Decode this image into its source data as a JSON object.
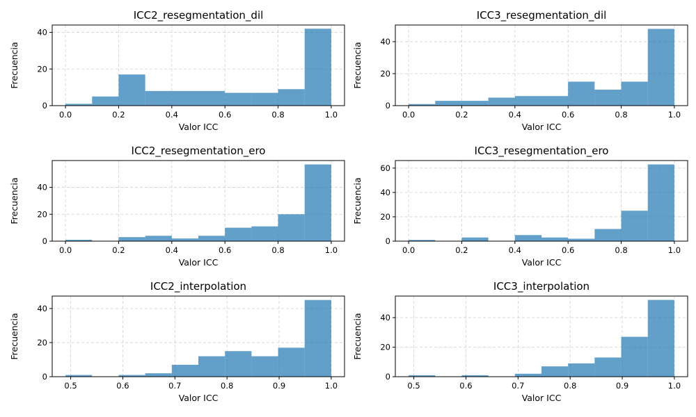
{
  "figure": {
    "background": "#ffffff",
    "bar_color": "#1f77b4",
    "bar_opacity": 0.7,
    "grid_color": "#b0b0b0"
  },
  "chart_data": [
    {
      "type": "bar",
      "title": "ICC2_resegmentation_dil",
      "xlabel": "Valor ICC",
      "ylabel": "Frecuencia",
      "grid": true,
      "xlim": [
        -0.05,
        1.05
      ],
      "ylim": [
        0,
        44
      ],
      "xticks": [
        0.0,
        0.2,
        0.4,
        0.6,
        0.8,
        1.0
      ],
      "xtick_labels": [
        "0.0",
        "0.2",
        "0.4",
        "0.6",
        "0.8",
        "1.0"
      ],
      "yticks": [
        0,
        20,
        40
      ],
      "ytick_labels": [
        "0",
        "20",
        "40"
      ],
      "bin_edges": [
        0.0,
        0.1,
        0.2,
        0.3,
        0.4,
        0.5,
        0.6,
        0.7,
        0.8,
        0.9,
        1.0
      ],
      "values": [
        1,
        5,
        17,
        8,
        8,
        8,
        7,
        7,
        9,
        42
      ]
    },
    {
      "type": "bar",
      "title": "ICC3_resegmentation_dil",
      "xlabel": "Valor ICC",
      "ylabel": "Frecuencia",
      "grid": true,
      "xlim": [
        -0.05,
        1.05
      ],
      "ylim": [
        0,
        50.4
      ],
      "xticks": [
        0.0,
        0.2,
        0.4,
        0.6,
        0.8,
        1.0
      ],
      "xtick_labels": [
        "0.0",
        "0.2",
        "0.4",
        "0.6",
        "0.8",
        "1.0"
      ],
      "yticks": [
        0,
        20,
        40
      ],
      "ytick_labels": [
        "0",
        "20",
        "40"
      ],
      "bin_edges": [
        0.0,
        0.1,
        0.2,
        0.3,
        0.4,
        0.5,
        0.6,
        0.7,
        0.8,
        0.9,
        1.0
      ],
      "values": [
        1,
        3,
        3,
        5,
        6,
        6,
        15,
        10,
        15,
        48
      ]
    },
    {
      "type": "bar",
      "title": "ICC2_resegmentation_ero",
      "xlabel": "Valor ICC",
      "ylabel": "Frecuencia",
      "grid": true,
      "xlim": [
        -0.05,
        1.05
      ],
      "ylim": [
        0,
        59.9
      ],
      "xticks": [
        0.0,
        0.2,
        0.4,
        0.6,
        0.8,
        1.0
      ],
      "xtick_labels": [
        "0.0",
        "0.2",
        "0.4",
        "0.6",
        "0.8",
        "1.0"
      ],
      "yticks": [
        0,
        20,
        40
      ],
      "ytick_labels": [
        "0",
        "20",
        "40"
      ],
      "bin_edges": [
        0.0,
        0.1,
        0.2,
        0.3,
        0.4,
        0.5,
        0.6,
        0.7,
        0.8,
        0.9,
        1.0
      ],
      "values": [
        1,
        0,
        3,
        4,
        2,
        4,
        10,
        11,
        20,
        57
      ]
    },
    {
      "type": "bar",
      "title": "ICC3_resegmentation_ero",
      "xlabel": "Valor ICC",
      "ylabel": "Frecuencia",
      "grid": true,
      "xlim": [
        -0.05,
        1.05
      ],
      "ylim": [
        0,
        66.2
      ],
      "xticks": [
        0.0,
        0.2,
        0.4,
        0.6,
        0.8,
        1.0
      ],
      "xtick_labels": [
        "0.0",
        "0.2",
        "0.4",
        "0.6",
        "0.8",
        "1.0"
      ],
      "yticks": [
        0,
        20,
        40,
        60
      ],
      "ytick_labels": [
        "0",
        "20",
        "40",
        "60"
      ],
      "bin_edges": [
        0.0,
        0.1,
        0.2,
        0.3,
        0.4,
        0.5,
        0.6,
        0.7,
        0.8,
        0.9,
        1.0
      ],
      "values": [
        1,
        0,
        3,
        0,
        5,
        3,
        2,
        10,
        25,
        63
      ]
    },
    {
      "type": "bar",
      "title": "ICC2_interpolation",
      "xlabel": "Valor ICC",
      "ylabel": "Frecuencia",
      "grid": true,
      "xlim": [
        0.4645,
        1.0255
      ],
      "ylim": [
        0,
        47.3
      ],
      "xticks": [
        0.5,
        0.6,
        0.7,
        0.8,
        0.9,
        1.0
      ],
      "xtick_labels": [
        "0.5",
        "0.6",
        "0.7",
        "0.8",
        "0.9",
        "1.0"
      ],
      "yticks": [
        0,
        20,
        40
      ],
      "ytick_labels": [
        "0",
        "20",
        "40"
      ],
      "bin_edges": [
        0.49,
        0.541,
        0.592,
        0.643,
        0.694,
        0.745,
        0.796,
        0.847,
        0.898,
        0.949,
        1.0
      ],
      "values": [
        1,
        0,
        1,
        2,
        7,
        12,
        15,
        12,
        17,
        45
      ]
    },
    {
      "type": "bar",
      "title": "ICC3_interpolation",
      "xlabel": "Valor ICC",
      "ylabel": "Frecuencia",
      "grid": true,
      "xlim": [
        0.4645,
        1.0255
      ],
      "ylim": [
        0,
        54.6
      ],
      "xticks": [
        0.5,
        0.6,
        0.7,
        0.8,
        0.9,
        1.0
      ],
      "xtick_labels": [
        "0.5",
        "0.6",
        "0.7",
        "0.8",
        "0.9",
        "1.0"
      ],
      "yticks": [
        0,
        20,
        40
      ],
      "ytick_labels": [
        "0",
        "20",
        "40"
      ],
      "bin_edges": [
        0.49,
        0.541,
        0.592,
        0.643,
        0.694,
        0.745,
        0.796,
        0.847,
        0.898,
        0.949,
        1.0
      ],
      "values": [
        1,
        0,
        1,
        0,
        2,
        7,
        9,
        13,
        27,
        52
      ]
    }
  ]
}
